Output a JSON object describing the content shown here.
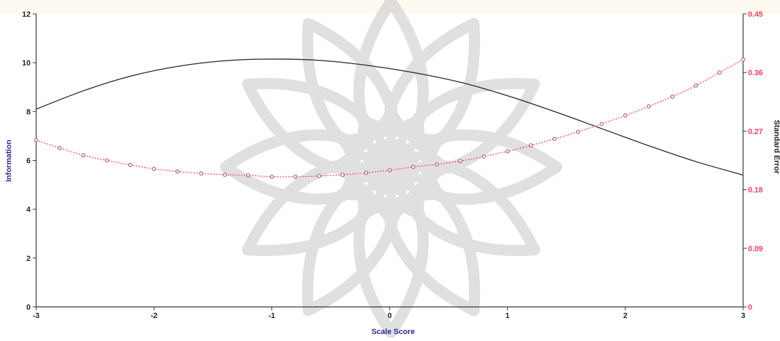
{
  "chart_data": {
    "type": "line",
    "title": "",
    "xlabel": "Scale Score",
    "ylabel_left": "Information",
    "ylabel_right": "Standard Error",
    "xlim": [
      -3,
      3
    ],
    "ylim_left": [
      0,
      12
    ],
    "ylim_right": [
      0,
      0.45
    ],
    "x_ticks": [
      "-3",
      "-2",
      "-1",
      "0",
      "1",
      "2",
      "3"
    ],
    "y_left_ticks": [
      "0",
      "2",
      "4",
      "6",
      "8",
      "10",
      "12"
    ],
    "y_right_ticks": [
      "0",
      "0.09",
      "0.18",
      "0.27",
      "0.36",
      "0.45"
    ],
    "grid": false,
    "colors": {
      "information": "#333333",
      "standard_error": "#ff3a5a",
      "background": "#fefaf0",
      "watermark": "#c8c8c8"
    },
    "series": [
      {
        "name": "Information",
        "axis": "left",
        "style": "solid",
        "x": [
          -3.0,
          -2.6,
          -2.2,
          -1.8,
          -1.4,
          -1.0,
          -0.6,
          -0.2,
          0.2,
          0.6,
          1.0,
          1.4,
          1.8,
          2.2,
          2.6,
          3.0
        ],
        "y": [
          8.1,
          8.85,
          9.45,
          9.85,
          10.08,
          10.15,
          10.1,
          9.9,
          9.6,
          9.2,
          8.65,
          8.0,
          7.3,
          6.6,
          5.95,
          5.4
        ]
      },
      {
        "name": "Standard Error",
        "axis": "right",
        "style": "dotted-markers",
        "x": [
          -3.0,
          -2.8,
          -2.6,
          -2.4,
          -2.2,
          -2.0,
          -1.8,
          -1.6,
          -1.4,
          -1.2,
          -1.0,
          -0.8,
          -0.6,
          -0.4,
          -0.2,
          0.0,
          0.2,
          0.4,
          0.6,
          0.8,
          1.0,
          1.2,
          1.4,
          1.6,
          1.8,
          2.0,
          2.2,
          2.4,
          2.6,
          2.8,
          3.0
        ],
        "y": [
          0.256,
          0.244,
          0.233,
          0.225,
          0.218,
          0.212,
          0.208,
          0.205,
          0.203,
          0.202,
          0.2,
          0.2,
          0.201,
          0.203,
          0.206,
          0.21,
          0.215,
          0.219,
          0.224,
          0.231,
          0.239,
          0.248,
          0.258,
          0.269,
          0.281,
          0.294,
          0.308,
          0.323,
          0.34,
          0.36,
          0.38
        ]
      }
    ]
  }
}
